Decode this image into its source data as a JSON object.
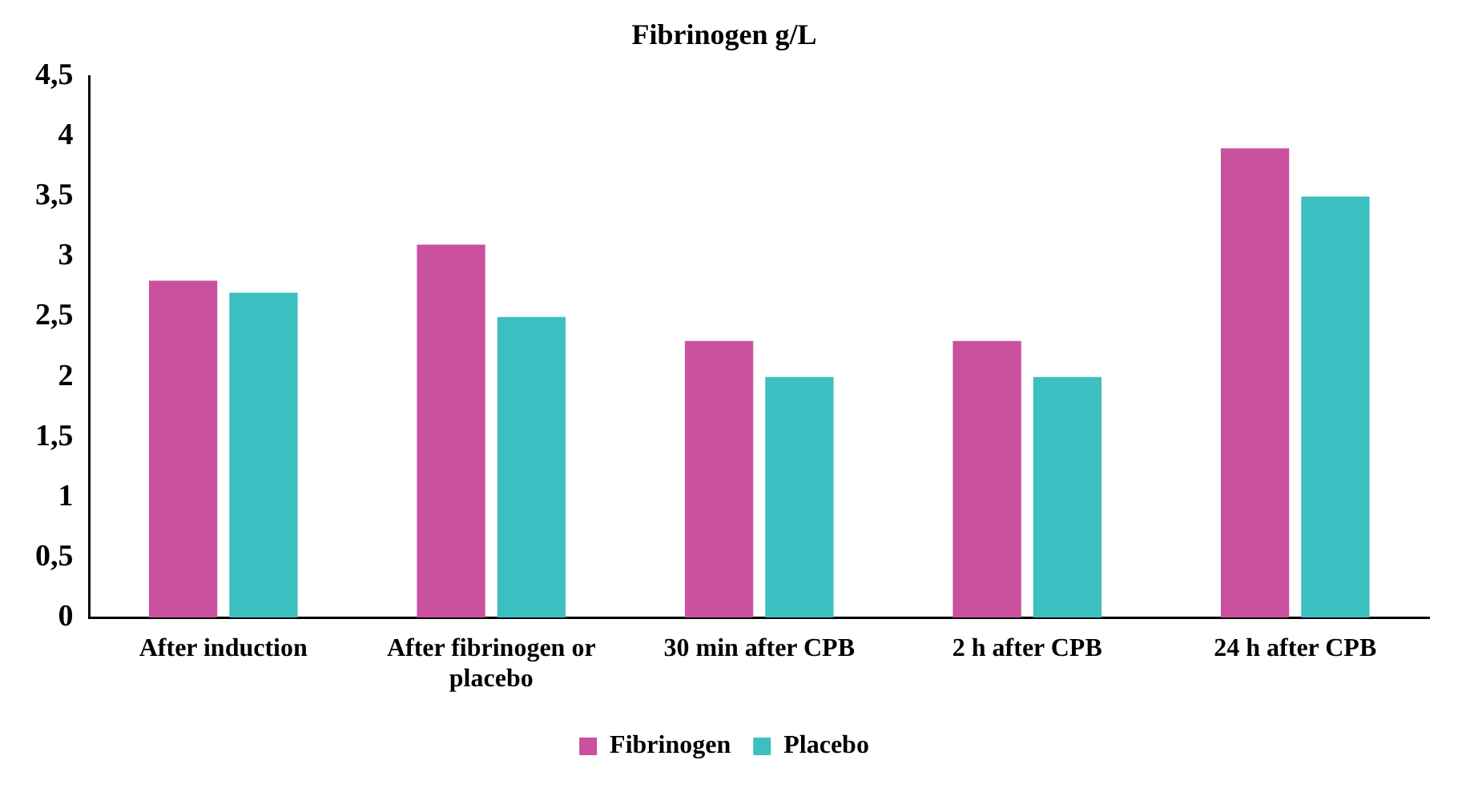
{
  "chart_data": {
    "type": "bar",
    "title": "Fibrinogen g/L",
    "categories": [
      "After induction",
      "After fibrinogen or placebo",
      "30 min after CPB",
      "2 h after CPB",
      "24 h after CPB"
    ],
    "series": [
      {
        "name": "Fibrinogen",
        "color": "#c9519e",
        "values": [
          2.8,
          3.1,
          2.3,
          2.3,
          3.9
        ]
      },
      {
        "name": "Placebo",
        "color": "#3dbfc1",
        "values": [
          2.7,
          2.5,
          2.0,
          2.0,
          3.5
        ]
      }
    ],
    "ylim": [
      0,
      4.5
    ],
    "yticks": [
      0,
      {
        "value": 0.5,
        "label": "0,5"
      },
      1,
      {
        "value": 1.5,
        "label": "1,5"
      },
      2,
      {
        "value": 2.5,
        "label": "2,5"
      },
      3,
      {
        "value": 3.5,
        "label": "3,5"
      },
      4,
      {
        "value": 4.5,
        "label": "4,5"
      }
    ],
    "grid": false,
    "legend": "bottom"
  }
}
